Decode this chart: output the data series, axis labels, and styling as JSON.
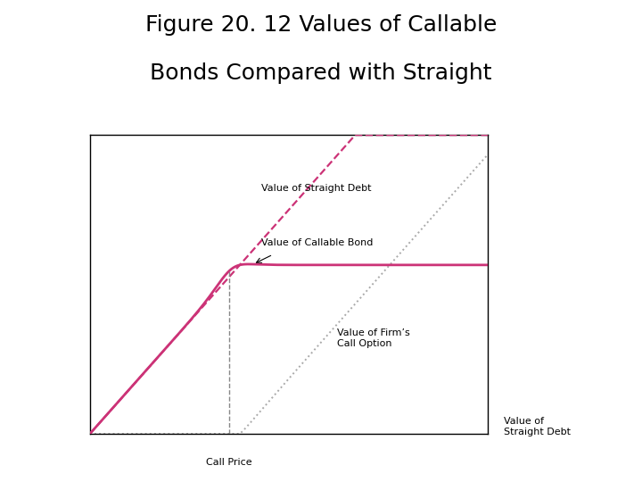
{
  "title_line1": "Figure 20. 12 Values of Callable",
  "title_line2": "Bonds Compared with Straight",
  "title_fontsize": 18,
  "title_color": "#000000",
  "background_color": "#ffffff",
  "plot_bg_color": "#ffffff",
  "call_price_x": 3.5,
  "x_min": 0,
  "x_max": 10,
  "y_min": 0,
  "y_max": 10,
  "straight_debt_color": "#cc3377",
  "callable_bond_color": "#cc3377",
  "call_option_color": "#aaaaaa",
  "dashed_vert_color": "#888888",
  "label_straight_debt_inside": "Value of Straight Debt",
  "label_callable_bond_inside": "Value of Callable Bond",
  "label_call_option": "Value of Firm’s\nCall Option",
  "xlabel_call_price": "Call Price",
  "xlabel_straight_debt_right": "Value of\nStraight Debt",
  "font_size_labels": 8,
  "font_size_title": 18
}
